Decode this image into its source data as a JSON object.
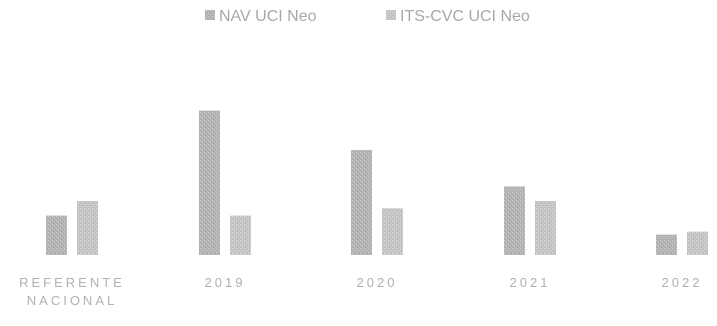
{
  "chart_data": {
    "type": "bar",
    "categories": [
      [
        "REFERENTE",
        "NACIONAL"
      ],
      [
        "2019"
      ],
      [
        "2020"
      ],
      [
        "2021"
      ],
      [
        "2022"
      ]
    ],
    "series": [
      {
        "name": "NAV UCI Neo",
        "values": [
          2.7,
          9.9,
          7.2,
          4.7,
          1.4
        ],
        "color": "#b4b4b4"
      },
      {
        "name": "ITS-CVC UCI Neo",
        "values": [
          3.7,
          2.7,
          3.2,
          3.7,
          1.6
        ],
        "color": "#c6c6c6"
      }
    ],
    "ylim": [
      0,
      12
    ],
    "grid": false,
    "legend_position": "top"
  }
}
